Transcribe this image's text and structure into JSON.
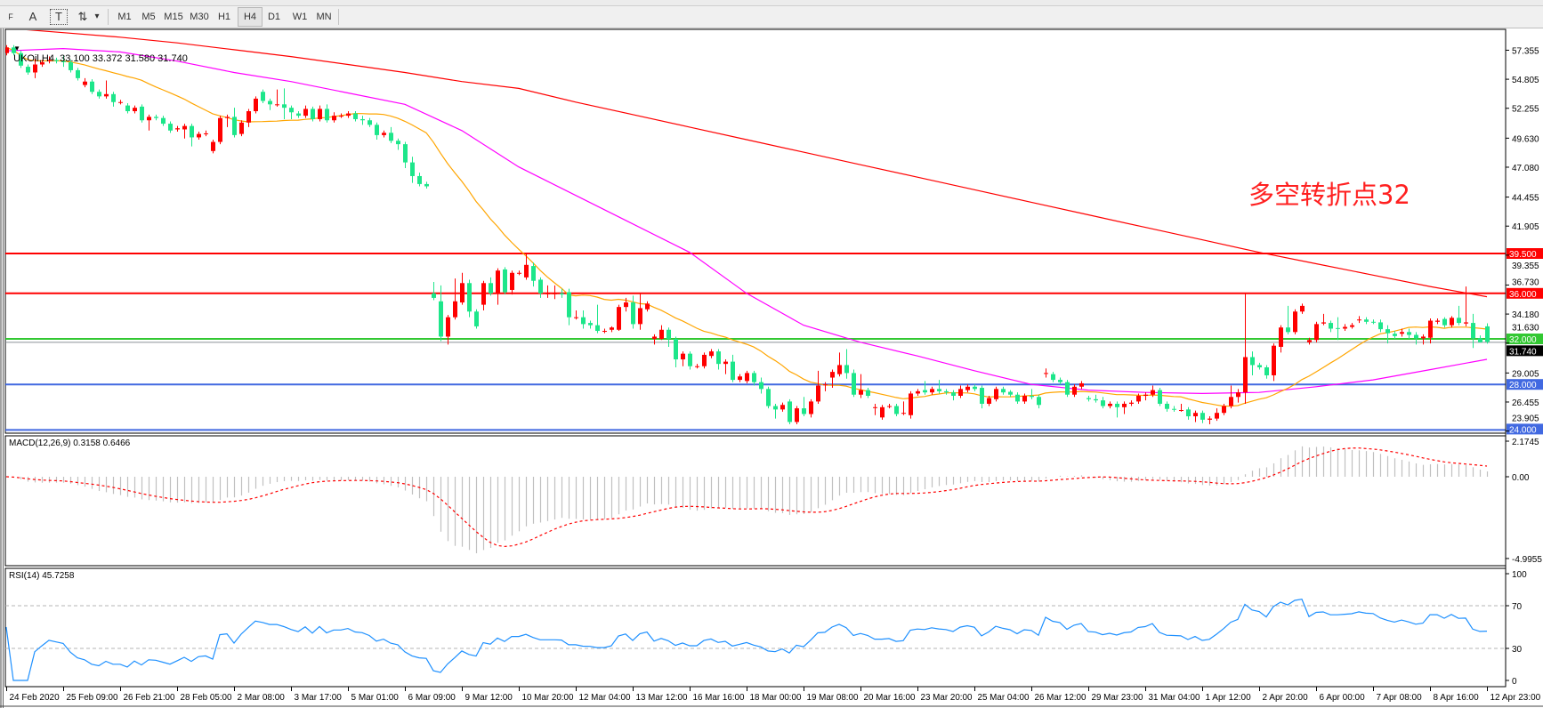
{
  "toolbar": {
    "tools": [
      {
        "icon": "grid-icon",
        "label": "F"
      },
      {
        "icon": "text-icon",
        "label": "A"
      },
      {
        "icon": "text-label-icon",
        "label": "T"
      },
      {
        "icon": "arrows-icon",
        "label": "⇅"
      }
    ],
    "dropdown_glyph": "▾",
    "timeframes": [
      "M1",
      "M5",
      "M15",
      "M30",
      "H1",
      "H4",
      "D1",
      "W1",
      "MN"
    ],
    "active_timeframe": "H4"
  },
  "header": {
    "symbol_line": "UKOil,H4  33.100 33.372 31.580 31.740"
  },
  "annotation": "多空转折点32",
  "macd": {
    "label": "MACD(12,26,9) 0.3158 0.6466",
    "axis": [
      "2.1745",
      "0.00",
      "-4.9955"
    ]
  },
  "rsi": {
    "label": "RSI(14) 45.7258",
    "axis": [
      "100",
      "70",
      "30",
      "0"
    ]
  },
  "colors": {
    "bull": "#ff0000",
    "bear": "#1de68a",
    "ma_fast": "#ffa500",
    "ma_mid": "#ff00ff",
    "ma_slow": "#ff0000",
    "rsi": "#1e90ff",
    "macd_hist": "#c0c0c0",
    "macd_signal": "#ff0000"
  },
  "chart_data": {
    "type": "candlestick",
    "symbol": "UKOil",
    "timeframe": "H4",
    "last_ohlc": {
      "open": 33.1,
      "high": 33.372,
      "low": 31.58,
      "close": 31.74
    },
    "x_tick_labels": [
      "24 Feb 2020",
      "25 Feb 09:00",
      "26 Feb 21:00",
      "28 Feb 05:00",
      "2 Mar 08:00",
      "3 Mar 17:00",
      "5 Mar 01:00",
      "6 Mar 09:00",
      "9 Mar 12:00",
      "10 Mar 20:00",
      "12 Mar 04:00",
      "13 Mar 12:00",
      "16 Mar 16:00",
      "18 Mar 00:00",
      "19 Mar 08:00",
      "20 Mar 16:00",
      "23 Mar 20:00",
      "25 Mar 04:00",
      "26 Mar 12:00",
      "29 Mar 23:00",
      "31 Mar 04:00",
      "1 Apr 12:00",
      "2 Apr 20:00",
      "6 Apr 00:00",
      "7 Apr 08:00",
      "8 Apr 16:00",
      "12 Apr 23:00"
    ],
    "y_tick_labels": [
      "57.355",
      "54.805",
      "52.255",
      "49.630",
      "47.080",
      "44.455",
      "41.905",
      "39.355",
      "36.730",
      "34.180",
      "31.630",
      "29.005",
      "26.455",
      "23.905"
    ],
    "levels": [
      {
        "price": 39.5,
        "label": "39.500",
        "color": "#ff0000"
      },
      {
        "price": 36.0,
        "label": "36.000",
        "color": "#ff0000"
      },
      {
        "price": 32.0,
        "label": "32.000",
        "color": "#32c832"
      },
      {
        "price": 28.0,
        "label": "28.000",
        "color": "#4169e1"
      },
      {
        "price": 24.0,
        "label": "24.000",
        "color": "#4169e1"
      }
    ],
    "bid": {
      "price": 31.74,
      "label": "31.740"
    },
    "candles_ohlc": [
      [
        57.1,
        57.8,
        56.9,
        57.6
      ],
      [
        57.6,
        57.8,
        56.9,
        57.1
      ],
      [
        57.1,
        57.3,
        55.8,
        56.0
      ],
      [
        55.9,
        56.1,
        55.2,
        55.4
      ],
      [
        55.4,
        56.6,
        54.9,
        56.1
      ],
      [
        56.1,
        56.5,
        55.9,
        56.3
      ],
      [
        56.4,
        56.8,
        56.2,
        56.5
      ],
      [
        56.5,
        56.7,
        56.2,
        56.4
      ],
      [
        56.4,
        56.9,
        55.9,
        56.3
      ],
      [
        56.3,
        56.5,
        55.4,
        55.6
      ],
      [
        55.6,
        55.8,
        54.7,
        54.9
      ],
      [
        54.3,
        54.9,
        54.1,
        54.6
      ],
      [
        54.6,
        54.8,
        53.5,
        53.7
      ],
      [
        53.7,
        53.9,
        53.1,
        53.3
      ],
      [
        53.3,
        54.7,
        53.1,
        53.5
      ],
      [
        53.5,
        53.7,
        52.4,
        52.8
      ],
      [
        52.8,
        53.0,
        52.6,
        52.8
      ],
      [
        52.5,
        52.7,
        51.8,
        52.0
      ],
      [
        52.0,
        52.5,
        51.8,
        52.3
      ],
      [
        52.4,
        52.6,
        51.0,
        51.2
      ],
      [
        51.2,
        51.7,
        50.3,
        51.5
      ],
      [
        51.5,
        51.7,
        51.2,
        51.4
      ],
      [
        51.4,
        51.6,
        50.7,
        50.9
      ],
      [
        50.9,
        51.1,
        50.1,
        50.3
      ],
      [
        50.4,
        50.7,
        50.2,
        50.5
      ],
      [
        50.4,
        50.9,
        49.6,
        50.7
      ],
      [
        50.7,
        50.9,
        48.9,
        49.7
      ],
      [
        49.7,
        50.2,
        49.5,
        50.0
      ],
      [
        50.05,
        50.3,
        49.8,
        50.05
      ],
      [
        48.5,
        49.5,
        48.3,
        49.3
      ],
      [
        49.3,
        51.6,
        49.1,
        51.4
      ],
      [
        51.4,
        51.7,
        50.6,
        51.5
      ],
      [
        51.5,
        52.3,
        49.7,
        49.9
      ],
      [
        50.0,
        51.2,
        49.8,
        51.0
      ],
      [
        51.0,
        52.2,
        50.6,
        52.0
      ],
      [
        52.0,
        53.3,
        51.8,
        53.1
      ],
      [
        53.7,
        53.9,
        52.7,
        52.9
      ],
      [
        52.9,
        53.1,
        52.1,
        52.6
      ],
      [
        52.6,
        53.9,
        52.4,
        52.6
      ],
      [
        52.6,
        54.0,
        51.3,
        52.3
      ],
      [
        52.3,
        52.5,
        51.3,
        51.9
      ],
      [
        51.8,
        52.0,
        51.4,
        51.6
      ],
      [
        51.6,
        52.5,
        51.4,
        52.2
      ],
      [
        52.2,
        52.4,
        51.1,
        51.3
      ],
      [
        51.3,
        52.5,
        51.1,
        52.2
      ],
      [
        52.2,
        52.6,
        51.0,
        51.2
      ],
      [
        51.2,
        51.9,
        51.0,
        51.6
      ],
      [
        51.6,
        51.8,
        51.4,
        51.6
      ],
      [
        51.6,
        52.0,
        51.4,
        51.8
      ],
      [
        51.8,
        52.0,
        51.1,
        51.3
      ],
      [
        51.3,
        51.6,
        50.8,
        51.2
      ],
      [
        51.2,
        51.4,
        50.6,
        50.8
      ],
      [
        50.8,
        51.0,
        49.5,
        49.9
      ],
      [
        49.9,
        50.3,
        49.7,
        50.1
      ],
      [
        50.1,
        50.6,
        49.2,
        49.4
      ],
      [
        49.4,
        49.6,
        48.6,
        49.1
      ],
      [
        49.1,
        49.3,
        47.0,
        47.5
      ],
      [
        47.5,
        48.0,
        45.7,
        46.3
      ],
      [
        46.3,
        46.6,
        45.4,
        45.6
      ],
      [
        45.6,
        45.8,
        45.2,
        45.4
      ],
      [
        36.0,
        37.0,
        35.4,
        35.6
      ],
      [
        35.3,
        36.7,
        31.8,
        32.2
      ],
      [
        32.2,
        34.1,
        31.5,
        33.9
      ],
      [
        33.9,
        37.3,
        33.7,
        35.3
      ],
      [
        35.2,
        37.8,
        35.0,
        36.9
      ],
      [
        36.9,
        37.2,
        33.9,
        34.4
      ],
      [
        34.4,
        34.6,
        32.9,
        33.1
      ],
      [
        35.0,
        37.1,
        34.5,
        36.9
      ],
      [
        36.9,
        37.4,
        35.8,
        36.0
      ],
      [
        36.0,
        38.2,
        35.0,
        38.0
      ],
      [
        38.1,
        38.3,
        35.9,
        36.1
      ],
      [
        36.3,
        38.0,
        35.9,
        37.8
      ],
      [
        37.8,
        38.0,
        37.6,
        37.8
      ],
      [
        37.4,
        39.5,
        37.2,
        38.5
      ],
      [
        38.4,
        38.7,
        36.6,
        37.1
      ],
      [
        37.2,
        37.4,
        35.6,
        36.0
      ],
      [
        36.0,
        36.7,
        35.6,
        36.0
      ],
      [
        36.0,
        36.7,
        35.5,
        36.0
      ],
      [
        36.0,
        36.4,
        35.6,
        35.9
      ],
      [
        36.1,
        36.4,
        33.2,
        33.9
      ],
      [
        33.9,
        34.5,
        33.7,
        33.9
      ],
      [
        33.9,
        34.5,
        32.9,
        33.3
      ],
      [
        33.4,
        33.6,
        32.9,
        33.2
      ],
      [
        33.2,
        35.0,
        32.5,
        32.7
      ],
      [
        32.7,
        32.9,
        32.5,
        32.7
      ],
      [
        32.8,
        33.1,
        32.6,
        33.0
      ],
      [
        32.8,
        35.0,
        32.7,
        34.8
      ],
      [
        34.8,
        35.6,
        34.4,
        35.2
      ],
      [
        35.2,
        35.8,
        32.9,
        33.3
      ],
      [
        33.3,
        36.0,
        32.8,
        34.7
      ],
      [
        34.6,
        35.3,
        34.4,
        35.1
      ],
      [
        32.0,
        32.4,
        31.5,
        32.2
      ],
      [
        32.0,
        33.2,
        31.9,
        32.8
      ],
      [
        32.8,
        33.0,
        31.3,
        32.0
      ],
      [
        32.0,
        32.2,
        29.5,
        30.2
      ],
      [
        30.2,
        30.9,
        29.6,
        30.7
      ],
      [
        30.7,
        30.9,
        29.3,
        29.6
      ],
      [
        29.6,
        29.8,
        29.4,
        29.6
      ],
      [
        29.6,
        30.8,
        29.4,
        30.6
      ],
      [
        30.5,
        31.1,
        30.3,
        30.9
      ],
      [
        30.9,
        31.1,
        29.3,
        29.8
      ],
      [
        29.8,
        30.2,
        28.9,
        30.0
      ],
      [
        30.0,
        30.6,
        28.2,
        28.4
      ],
      [
        28.4,
        28.9,
        28.2,
        28.7
      ],
      [
        28.3,
        29.2,
        28.1,
        29.0
      ],
      [
        29.0,
        29.2,
        27.9,
        28.2
      ],
      [
        28.2,
        28.6,
        27.2,
        27.6
      ],
      [
        27.6,
        27.8,
        25.9,
        26.1
      ],
      [
        26.1,
        26.3,
        25.0,
        25.8
      ],
      [
        25.8,
        26.4,
        25.6,
        26.2
      ],
      [
        26.5,
        26.7,
        24.5,
        24.7
      ],
      [
        24.7,
        26.1,
        24.5,
        25.9
      ],
      [
        25.9,
        26.9,
        25.2,
        25.4
      ],
      [
        25.4,
        26.7,
        25.1,
        26.5
      ],
      [
        26.5,
        29.2,
        26.3,
        27.9
      ],
      [
        28.0,
        28.2,
        27.4,
        28.0
      ],
      [
        28.6,
        29.3,
        27.7,
        29.1
      ],
      [
        28.9,
        30.8,
        28.7,
        29.7
      ],
      [
        29.7,
        31.1,
        28.5,
        29.0
      ],
      [
        29.0,
        29.3,
        26.9,
        27.1
      ],
      [
        27.1,
        28.9,
        26.8,
        27.5
      ],
      [
        27.5,
        27.7,
        26.8,
        27.0
      ],
      [
        26.0,
        26.3,
        25.3,
        26.0
      ],
      [
        25.1,
        26.2,
        24.9,
        26.0
      ],
      [
        26.1,
        26.3,
        25.9,
        26.1
      ],
      [
        26.1,
        26.3,
        25.2,
        25.4
      ],
      [
        25.5,
        26.5,
        25.3,
        25.5
      ],
      [
        25.3,
        27.4,
        25.0,
        27.2
      ],
      [
        27.2,
        27.6,
        27.0,
        27.4
      ],
      [
        27.5,
        28.3,
        27.1,
        27.3
      ],
      [
        27.3,
        27.8,
        27.1,
        27.6
      ],
      [
        27.6,
        28.4,
        27.2,
        27.4
      ],
      [
        27.4,
        27.6,
        27.1,
        27.3
      ],
      [
        27.3,
        27.5,
        26.6,
        27.0
      ],
      [
        27.0,
        27.9,
        26.8,
        27.6
      ],
      [
        27.5,
        28.0,
        27.3,
        27.8
      ],
      [
        27.8,
        28.0,
        27.4,
        27.6
      ],
      [
        27.7,
        27.9,
        25.9,
        26.3
      ],
      [
        26.3,
        27.0,
        26.1,
        26.8
      ],
      [
        26.7,
        27.8,
        26.5,
        27.6
      ],
      [
        27.6,
        27.8,
        27.1,
        27.3
      ],
      [
        27.35,
        27.5,
        26.9,
        27.1
      ],
      [
        27.1,
        27.3,
        26.3,
        26.5
      ],
      [
        26.5,
        27.2,
        26.3,
        27.0
      ],
      [
        27.0,
        27.6,
        26.7,
        26.9
      ],
      [
        26.9,
        27.1,
        25.9,
        26.2
      ],
      [
        29.0,
        29.4,
        28.6,
        29.0
      ],
      [
        28.9,
        29.1,
        28.2,
        28.4
      ],
      [
        28.4,
        28.6,
        28.0,
        28.2
      ],
      [
        28.2,
        28.4,
        26.9,
        27.1
      ],
      [
        27.1,
        28.0,
        26.9,
        27.8
      ],
      [
        27.8,
        28.3,
        27.6,
        28.1
      ],
      [
        26.8,
        27.0,
        26.5,
        26.7
      ],
      [
        26.7,
        27.1,
        26.4,
        26.6
      ],
      [
        26.6,
        26.9,
        25.9,
        26.1
      ],
      [
        26.1,
        26.5,
        25.9,
        26.3
      ],
      [
        26.3,
        26.5,
        25.1,
        26.0
      ],
      [
        26.0,
        26.5,
        25.4,
        26.3
      ],
      [
        26.3,
        26.6,
        26.1,
        26.4
      ],
      [
        26.5,
        27.2,
        26.3,
        27.0
      ],
      [
        27.0,
        27.3,
        26.6,
        27.1
      ],
      [
        27.1,
        27.9,
        26.9,
        27.5
      ],
      [
        27.5,
        27.7,
        26.1,
        26.3
      ],
      [
        26.3,
        26.5,
        25.6,
        25.85
      ],
      [
        25.85,
        26.1,
        25.6,
        25.8
      ],
      [
        25.75,
        26.3,
        25.6,
        25.75
      ],
      [
        25.8,
        26.0,
        24.9,
        25.2
      ],
      [
        25.2,
        25.7,
        24.7,
        25.5
      ],
      [
        25.5,
        25.7,
        24.6,
        24.9
      ],
      [
        24.9,
        25.2,
        24.5,
        25.0
      ],
      [
        25.0,
        25.9,
        24.8,
        25.5
      ],
      [
        25.5,
        26.3,
        25.3,
        26.1
      ],
      [
        26.1,
        27.9,
        25.9,
        26.9
      ],
      [
        26.9,
        27.6,
        26.4,
        27.3
      ],
      [
        27.3,
        36.0,
        26.3,
        30.4
      ],
      [
        30.4,
        30.9,
        28.8,
        29.7
      ],
      [
        29.7,
        29.9,
        29.3,
        29.5
      ],
      [
        29.5,
        29.7,
        28.5,
        28.8
      ],
      [
        28.8,
        31.6,
        28.3,
        31.4
      ],
      [
        31.3,
        33.2,
        30.8,
        33.0
      ],
      [
        33.0,
        34.9,
        32.4,
        32.6
      ],
      [
        32.6,
        34.6,
        32.4,
        34.4
      ],
      [
        34.4,
        35.1,
        34.2,
        34.9
      ],
      [
        31.7,
        32.1,
        31.5,
        31.9
      ],
      [
        31.9,
        33.5,
        31.7,
        33.3
      ],
      [
        33.35,
        34.2,
        33.2,
        33.45
      ],
      [
        33.4,
        33.6,
        32.6,
        32.9
      ],
      [
        32.95,
        33.9,
        31.9,
        32.9
      ],
      [
        32.9,
        33.3,
        32.7,
        33.05
      ],
      [
        33.05,
        33.4,
        32.9,
        33.2
      ],
      [
        33.7,
        34.0,
        33.4,
        33.7
      ],
      [
        33.7,
        33.9,
        33.3,
        33.5
      ],
      [
        33.5,
        33.7,
        33.3,
        33.45
      ],
      [
        33.45,
        33.7,
        32.6,
        32.85
      ],
      [
        32.85,
        33.2,
        31.6,
        32.5
      ],
      [
        32.45,
        32.7,
        32.0,
        32.25
      ],
      [
        32.45,
        32.9,
        32.2,
        32.6
      ],
      [
        32.6,
        32.9,
        32.0,
        32.35
      ],
      [
        32.35,
        32.6,
        31.5,
        32.05
      ],
      [
        32.05,
        32.4,
        31.5,
        32.2
      ],
      [
        32.1,
        33.8,
        31.6,
        33.6
      ],
      [
        33.5,
        33.8,
        33.3,
        33.6
      ],
      [
        33.75,
        33.9,
        33.0,
        33.2
      ],
      [
        33.2,
        34.0,
        33.0,
        33.85
      ],
      [
        33.85,
        34.9,
        33.2,
        33.4
      ],
      [
        33.35,
        36.6,
        33.1,
        33.45
      ],
      [
        33.4,
        34.2,
        31.2,
        32.05
      ],
      [
        32.05,
        32.3,
        31.7,
        31.7
      ],
      [
        33.1,
        33.372,
        31.58,
        31.74
      ]
    ],
    "moving_averages": {
      "slow_red_at_ticks": [
        59.3,
        58.9,
        58.5,
        58.0,
        57.4,
        56.8,
        56.1,
        55.4,
        54.6,
        54.0,
        52.8,
        51.7,
        50.6,
        49.5,
        48.4,
        47.3,
        46.2,
        45.1,
        44.0,
        42.9,
        41.8,
        40.7,
        39.6,
        38.6,
        37.6,
        36.6,
        35.7
      ],
      "mid_magenta_at_ticks": [
        57.3,
        57.5,
        57.2,
        56.4,
        55.4,
        54.6,
        53.6,
        52.6,
        50.3,
        47.1,
        44.6,
        42.1,
        39.6,
        36.0,
        33.2,
        31.7,
        30.5,
        29.2,
        28.0,
        27.5,
        27.3,
        27.2,
        27.3,
        27.8,
        28.4,
        29.3,
        30.2
      ],
      "fast_orange_period": 20
    },
    "indicators": {
      "macd": {
        "fast": 12,
        "slow": 26,
        "signal": 9,
        "ylim": [
          -4.9955,
          2.1745
        ]
      },
      "rsi": {
        "period": 14,
        "levels": [
          30,
          70
        ],
        "ylim": [
          0,
          100
        ]
      }
    }
  }
}
